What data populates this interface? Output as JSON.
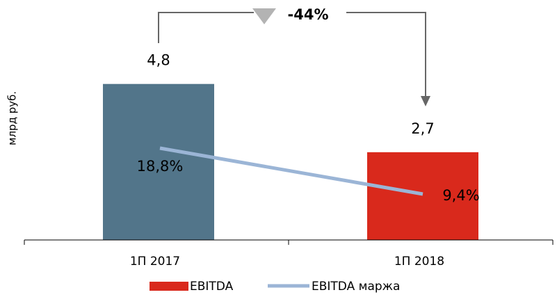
{
  "chart_data": {
    "type": "bar_line",
    "annotation": "-44%",
    "y_axis_label": "млрд руб.",
    "categories": [
      "1П 2017",
      "1П 2018"
    ],
    "series": [
      {
        "name": "EBITDA",
        "type": "bar",
        "color": "#d9291c",
        "colors": [
          "#52758a",
          "#d9291c"
        ],
        "values": [
          4.8,
          2.7
        ],
        "value_labels": [
          "4,8",
          "2,7"
        ]
      },
      {
        "name": "EBITDA маржа",
        "type": "line",
        "axis": "y2",
        "color": "#9bb5d6",
        "values": [
          18.8,
          9.4
        ],
        "value_labels": [
          "18,8%",
          "9,4%"
        ]
      }
    ],
    "ylim": [
      0,
      5.5
    ],
    "y2lim": [
      0,
      36.6
    ]
  }
}
